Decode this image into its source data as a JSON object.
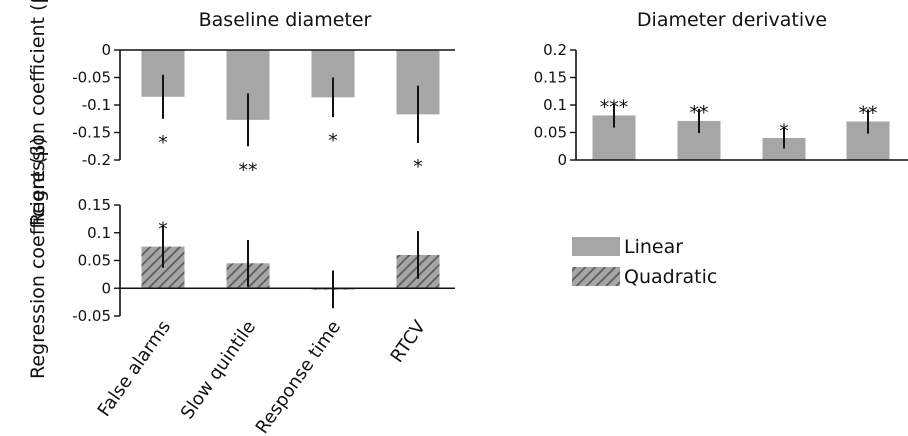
{
  "chart_data": [
    {
      "type": "bar",
      "title": "Baseline diameter",
      "ylabel": "Regression coefficient (β)",
      "categories": [
        "False alarms",
        "Slow quintile",
        "Response time",
        "RTCV"
      ],
      "series": [
        {
          "name": "Linear",
          "values": [
            -0.085,
            -0.127,
            -0.086,
            -0.117
          ]
        }
      ],
      "errors": [
        0.04,
        0.048,
        0.036,
        0.052
      ],
      "significance": [
        "*",
        "**",
        "*",
        "*"
      ],
      "ylim": [
        -0.2,
        0
      ],
      "yticks": [
        "0",
        "-0.05",
        "-0.1",
        "-0.15",
        "-0.2"
      ],
      "ytick_values": [
        0,
        -0.05,
        -0.1,
        -0.15,
        -0.2
      ],
      "color": "#a6a6a6",
      "grid": false
    },
    {
      "type": "bar",
      "title": "Diameter derivative",
      "ylabel": "",
      "categories": [
        "False alarms",
        "Slow quintile",
        "Response time",
        "RTCV"
      ],
      "series": [
        {
          "name": "Linear",
          "values": [
            0.081,
            0.071,
            0.04,
            0.07
          ]
        }
      ],
      "errors": [
        0.022,
        0.022,
        0.019,
        0.022
      ],
      "significance": [
        "***",
        "**",
        "*",
        "**"
      ],
      "ylim": [
        0,
        0.2
      ],
      "yticks": [
        "0.2",
        "0.15",
        "0.1",
        "0.05",
        "0"
      ],
      "ytick_values": [
        0.2,
        0.15,
        0.1,
        0.05,
        0
      ],
      "color": "#a6a6a6",
      "grid": false
    },
    {
      "type": "bar",
      "title": "",
      "ylabel": "Regression coefficient (β)",
      "categories": [
        "False alarms",
        "Slow quintile",
        "Response time",
        "RTCV"
      ],
      "series": [
        {
          "name": "Quadratic",
          "values": [
            0.075,
            0.045,
            -0.002,
            0.06
          ]
        }
      ],
      "errors": [
        0.038,
        0.042,
        0.034,
        0.043
      ],
      "significance": [
        "*",
        "",
        "",
        ""
      ],
      "ylim": [
        -0.05,
        0.15
      ],
      "yticks": [
        "0.15",
        "0.1",
        "0.05",
        "0",
        "-0.05"
      ],
      "ytick_values": [
        0.15,
        0.1,
        0.05,
        0,
        -0.05
      ],
      "color": "#a6a6a6",
      "hatched": true,
      "grid": false
    }
  ],
  "legend": {
    "placement": "right",
    "items": [
      {
        "label": "Linear",
        "style": "solid",
        "color": "#a6a6a6"
      },
      {
        "label": "Quadratic",
        "style": "hatched",
        "color": "#a6a6a6"
      }
    ]
  }
}
